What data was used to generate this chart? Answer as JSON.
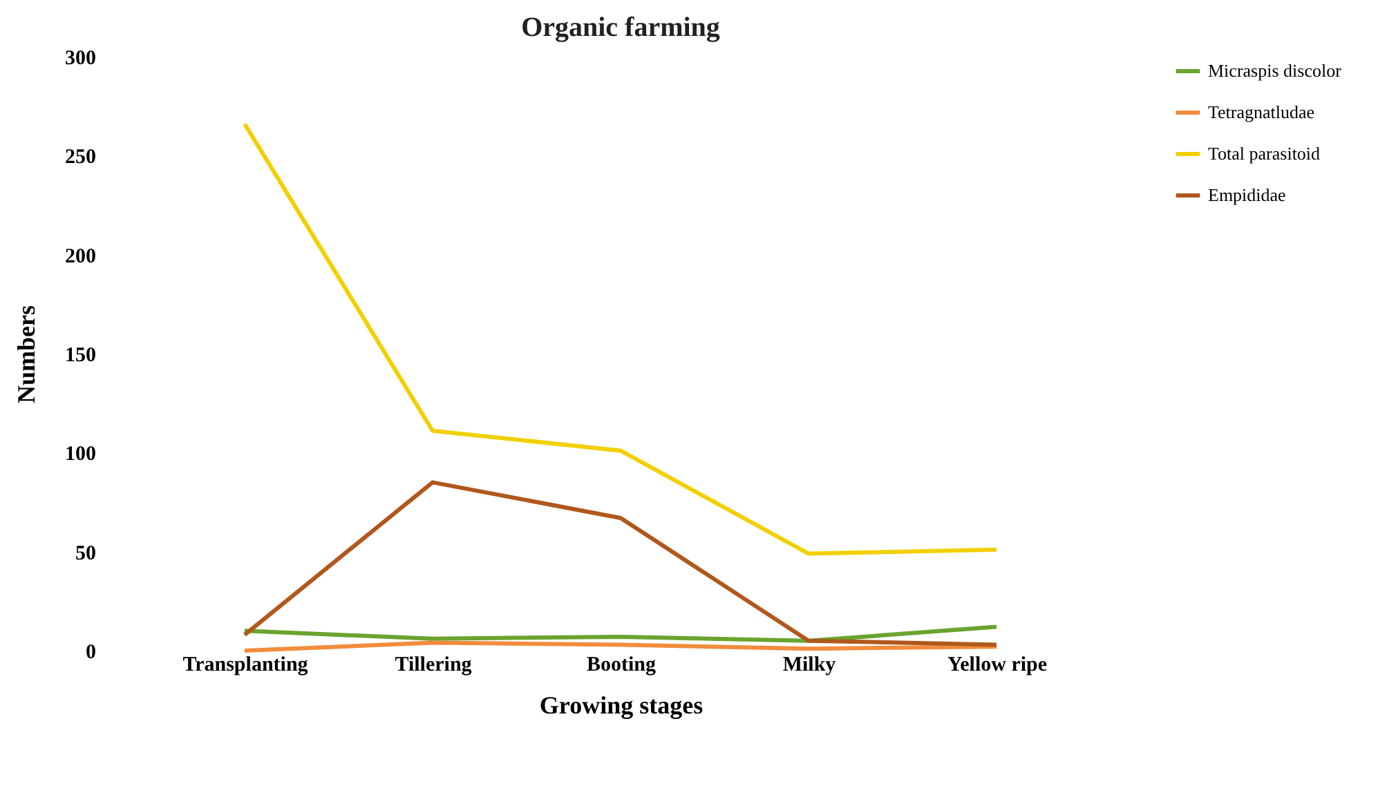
{
  "chart_data": {
    "type": "line",
    "title": "Organic farming",
    "xlabel": "Growing stages",
    "ylabel": "Numbers",
    "categories": [
      "Transplanting",
      "Tillering",
      "Booting",
      "Milky",
      "Yellow ripe"
    ],
    "ylim": [
      0,
      300
    ],
    "yticks": [
      0,
      50,
      100,
      150,
      200,
      250,
      300
    ],
    "grid": false,
    "legend": "right",
    "marker": "none",
    "line_style": "solid",
    "series": [
      {
        "name": "Micraspis discolor",
        "color": "#6aa42e",
        "values": [
          10,
          6,
          7,
          5,
          12
        ]
      },
      {
        "name": "Tetragnatludae",
        "color": "#f28c3c",
        "values": [
          0,
          4,
          3,
          1,
          2
        ]
      },
      {
        "name": "Total parasitoid",
        "color": "#f2d000",
        "values": [
          266,
          111,
          101,
          49,
          51
        ]
      },
      {
        "name": "Empididae",
        "color": "#b0581c",
        "values": [
          8,
          85,
          67,
          5,
          3
        ]
      }
    ]
  }
}
